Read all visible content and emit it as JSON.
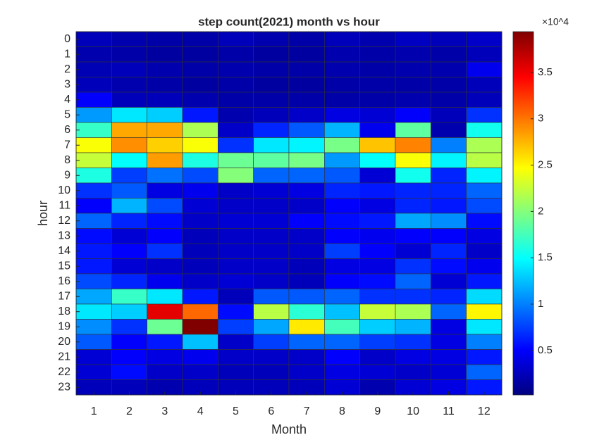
{
  "chart_data": {
    "type": "heatmap",
    "title": "step count(2021) month vs hour",
    "x_label": "Month",
    "y_label": "hour",
    "x": [
      1,
      2,
      3,
      4,
      5,
      6,
      7,
      8,
      9,
      10,
      11,
      12
    ],
    "y": [
      0,
      1,
      2,
      3,
      4,
      5,
      6,
      7,
      8,
      9,
      10,
      11,
      12,
      13,
      14,
      15,
      16,
      17,
      18,
      19,
      20,
      21,
      22,
      23
    ],
    "xlim": [
      0.5,
      12.5
    ],
    "ylim": [
      -0.5,
      23.5
    ],
    "colormap": "jet",
    "clim": [
      200,
      39400
    ],
    "colorbar_exponent": "×10^4",
    "colorbar_ticks": [
      {
        "value": 5000,
        "label": "0.5"
      },
      {
        "value": 10000,
        "label": "1"
      },
      {
        "value": 15000,
        "label": "1.5"
      },
      {
        "value": 20000,
        "label": "2"
      },
      {
        "value": 25000,
        "label": "2.5"
      },
      {
        "value": 30000,
        "label": "3"
      },
      {
        "value": 35000,
        "label": "3.5"
      }
    ],
    "values": [
      [
        2500,
        2000,
        1800,
        1800,
        2500,
        2000,
        1800,
        2500,
        2000,
        2800,
        2500,
        3000
      ],
      [
        2000,
        1800,
        1500,
        1500,
        1800,
        1500,
        1500,
        2000,
        1800,
        2000,
        1800,
        2500
      ],
      [
        2200,
        2500,
        2000,
        1800,
        2000,
        1800,
        1800,
        2000,
        1800,
        2000,
        2000,
        4500
      ],
      [
        2500,
        2000,
        1800,
        1500,
        1800,
        1500,
        1500,
        1800,
        1800,
        1800,
        1800,
        2500
      ],
      [
        5000,
        2500,
        2500,
        2000,
        1800,
        1800,
        1800,
        1800,
        1800,
        2000,
        1800,
        2500
      ],
      [
        11000,
        14000,
        13000,
        6000,
        2000,
        2500,
        3000,
        4000,
        3500,
        5000,
        2500,
        7000
      ],
      [
        17000,
        28000,
        28000,
        21500,
        3000,
        6500,
        8500,
        12000,
        4500,
        18500,
        2000,
        15500
      ],
      [
        24500,
        29000,
        26500,
        24500,
        7000,
        14000,
        14500,
        19500,
        27000,
        29500,
        10000,
        21500
      ],
      [
        22500,
        15000,
        28500,
        16000,
        19000,
        18500,
        19500,
        11000,
        15000,
        24500,
        14500,
        22000
      ],
      [
        16000,
        7500,
        9500,
        8000,
        20000,
        9000,
        9000,
        8500,
        3500,
        15500,
        6500,
        14500
      ],
      [
        7000,
        8500,
        4000,
        4500,
        3000,
        3500,
        4000,
        6500,
        6000,
        6500,
        6500,
        9000
      ],
      [
        5000,
        12000,
        8000,
        3500,
        3000,
        3000,
        3000,
        5000,
        4000,
        6500,
        6000,
        8000
      ],
      [
        9000,
        6500,
        5500,
        3000,
        3500,
        3500,
        5000,
        5500,
        6000,
        11500,
        10500,
        5500
      ],
      [
        5500,
        3500,
        5000,
        2500,
        3000,
        3000,
        3000,
        5000,
        4500,
        5000,
        5000,
        4000
      ],
      [
        6000,
        5000,
        7000,
        2500,
        3000,
        3000,
        3000,
        7500,
        5000,
        3500,
        6500,
        3000
      ],
      [
        6000,
        3500,
        3000,
        2500,
        3000,
        3000,
        2500,
        4000,
        4000,
        7000,
        5500,
        4500
      ],
      [
        8000,
        6500,
        4500,
        3000,
        3500,
        3000,
        2500,
        5000,
        5500,
        9000,
        3500,
        6000
      ],
      [
        11500,
        17000,
        14000,
        6000,
        2500,
        8500,
        8500,
        9000,
        7000,
        7000,
        6500,
        13500
      ],
      [
        14000,
        13000,
        35500,
        30500,
        5500,
        22000,
        16500,
        12500,
        22500,
        21500,
        9000,
        25000
      ],
      [
        10500,
        7000,
        19000,
        39400,
        7500,
        11500,
        25500,
        17500,
        13000,
        12000,
        4000,
        14000
      ],
      [
        8500,
        5000,
        6000,
        12500,
        3000,
        7500,
        9000,
        9000,
        7500,
        7000,
        4000,
        10000
      ],
      [
        3500,
        5000,
        4000,
        4500,
        3000,
        3000,
        3000,
        5000,
        3000,
        4000,
        4000,
        6000
      ],
      [
        3500,
        5500,
        3000,
        3000,
        2500,
        2500,
        3000,
        4000,
        3500,
        3000,
        3500,
        9000
      ],
      [
        2500,
        2500,
        2000,
        2500,
        2500,
        2500,
        2500,
        3500,
        2000,
        3500,
        4000,
        6000
      ]
    ]
  }
}
